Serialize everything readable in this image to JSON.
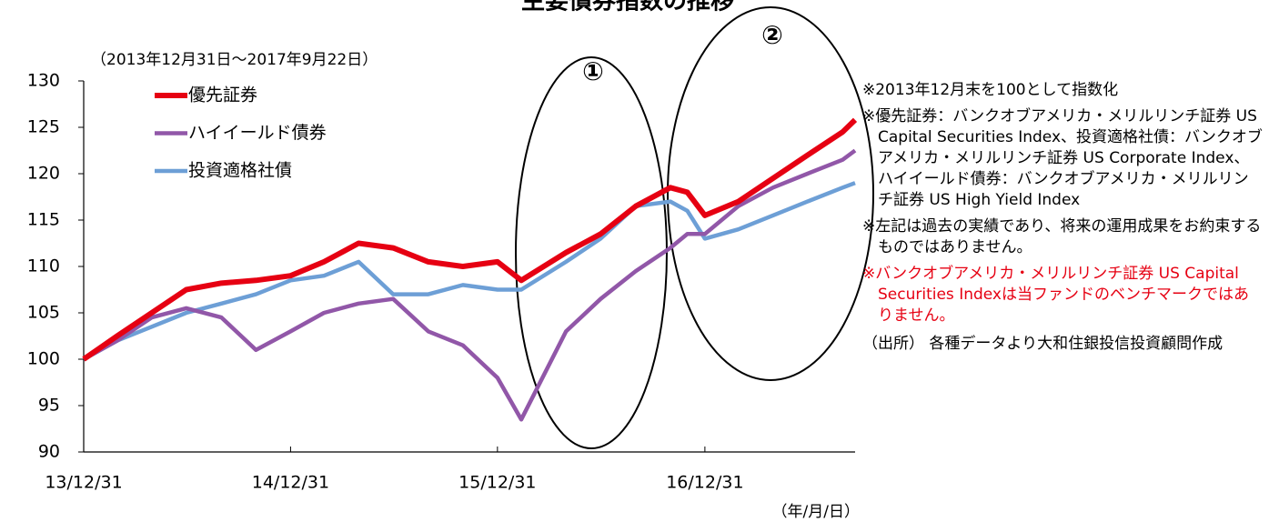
{
  "chart_data": {
    "type": "line",
    "title": "主要債券指数の推移",
    "subtitle": "（2013年12月31日～2017年9月22日）",
    "x_label": "（年/月/日）",
    "x": [
      "13/12/31",
      "14/02/28",
      "14/04/30",
      "14/06/30",
      "14/08/31",
      "14/10/31",
      "14/12/31",
      "15/02/28",
      "15/04/30",
      "15/06/30",
      "15/08/31",
      "15/10/31",
      "15/12/31",
      "16/02/11",
      "16/04/30",
      "16/06/30",
      "16/08/31",
      "16/10/31",
      "16/11/30",
      "16/12/31",
      "17/02/28",
      "17/04/30",
      "17/06/30",
      "17/08/31",
      "17/09/22"
    ],
    "series": [
      {
        "name": "優先証券",
        "color": "#e60012",
        "values": [
          100,
          102.5,
          105,
          107.5,
          108.2,
          108.5,
          109,
          110.5,
          112.5,
          112,
          110.5,
          110,
          110.5,
          108.5,
          111.5,
          113.5,
          116.5,
          118.5,
          118,
          115.5,
          117,
          119.5,
          122,
          124.5,
          125.8
        ]
      },
      {
        "name": "ハイイールド債券",
        "color": "#9157a8",
        "values": [
          100,
          102,
          104.5,
          105.5,
          104.5,
          101,
          103,
          105,
          106,
          106.5,
          103,
          101.5,
          98,
          93.5,
          103,
          106.5,
          109.5,
          112,
          113.5,
          113.5,
          116.5,
          118.5,
          120,
          121.5,
          122.5
        ]
      },
      {
        "name": "投資適格社債",
        "color": "#6d9fd6",
        "values": [
          100,
          102,
          103.5,
          105,
          106,
          107,
          108.5,
          109,
          110.5,
          107,
          107,
          108,
          107.5,
          107.5,
          110.5,
          113,
          116.5,
          117,
          116,
          113,
          114,
          115.5,
          117,
          118.5,
          119
        ]
      }
    ],
    "xlim": [
      "13/12/31",
      "17/09/22"
    ],
    "xticks": [
      "13/12/31",
      "14/12/31",
      "15/12/31",
      "16/12/31"
    ],
    "ylim": [
      90,
      130
    ],
    "yticks": [
      90,
      95,
      100,
      105,
      110,
      115,
      120,
      125,
      130
    ],
    "annotations": [
      "①",
      "②"
    ],
    "notes": [
      "※2013年12月末を100として指数化",
      "※優先証券：バンクオブアメリカ・メリルリンチ証券 US Capital Securities Index、投資適格社債：バンクオブアメリカ・メリルリンチ証券 US Corporate Index、ハイイールド債券：バンクオブアメリカ・メリルリンチ証券 US High Yield Index",
      "※左記は過去の実績であり、将来の運用成果をお約束するものではありません。"
    ],
    "red_note": "※バンクオブアメリカ・メリルリンチ証券 US Capital Securities Indexは当ファンドのベンチマークではありません。",
    "source": "（出所） 各種データより大和住銀投信投資顧問作成"
  }
}
